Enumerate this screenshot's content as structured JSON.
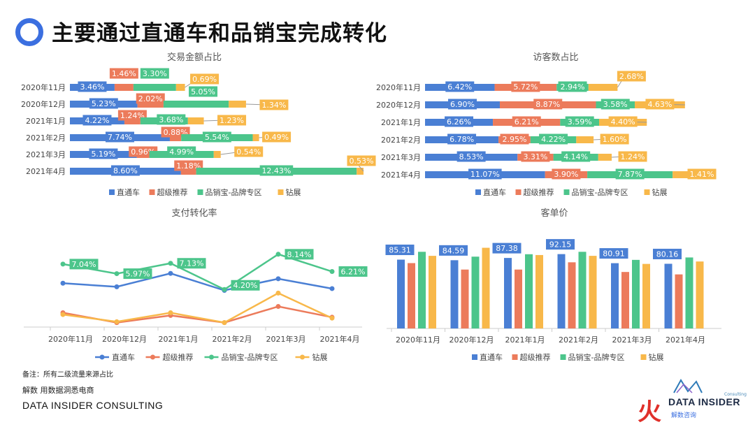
{
  "page": {
    "title": "主要通过直通车和品销宝完成转化",
    "note": "备注：所有二级流量来源占比",
    "footer_line1": "解数 用数据洞悉电商",
    "footer_line2": "DATA INSIDER CONSULTING",
    "brand_name": "DATA INSIDER",
    "brand_small": "Consulting",
    "brand_cn": "解数咨询",
    "brand_mark": "火",
    "accent_color": "#3b6fe0"
  },
  "colors": {
    "直通车": "#4a7fd4",
    "超级推荐": "#ec7b5b",
    "品销宝-品牌专区": "#4cc58b",
    "钻展": "#f8b84a"
  },
  "chart_data": [
    {
      "type": "bar",
      "orientation": "horizontal-stacked",
      "title": "交易金额占比",
      "categories": [
        "2020年11月",
        "2020年12月",
        "2021年1月",
        "2021年2月",
        "2021年3月",
        "2021年4月"
      ],
      "series": [
        {
          "name": "直通车",
          "values": [
            3.46,
            5.23,
            4.22,
            7.74,
            5.19,
            8.6
          ]
        },
        {
          "name": "超级推荐",
          "values": [
            1.46,
            2.02,
            1.24,
            0.88,
            0.96,
            1.18
          ]
        },
        {
          "name": "品销宝-品牌专区",
          "values": [
            3.3,
            5.05,
            3.68,
            5.54,
            4.99,
            12.43
          ]
        },
        {
          "name": "钻展",
          "values": [
            0.69,
            1.34,
            1.23,
            0.49,
            0.54,
            0.53
          ]
        }
      ],
      "value_suffix": "%",
      "legend": "bottom"
    },
    {
      "type": "bar",
      "orientation": "horizontal-stacked",
      "title": "访客数占比",
      "categories": [
        "2020年11月",
        "2020年12月",
        "2021年1月",
        "2021年2月",
        "2021年3月",
        "2021年4月"
      ],
      "series": [
        {
          "name": "直通车",
          "values": [
            6.42,
            6.9,
            6.26,
            6.78,
            8.53,
            11.07
          ]
        },
        {
          "name": "超级推荐",
          "values": [
            5.72,
            8.87,
            6.21,
            2.95,
            3.31,
            3.9
          ]
        },
        {
          "name": "品销宝-品牌专区",
          "values": [
            2.94,
            3.58,
            3.59,
            4.22,
            4.14,
            7.87
          ]
        },
        {
          "name": "钻展",
          "values": [
            2.68,
            4.63,
            4.4,
            1.6,
            1.24,
            1.41
          ]
        }
      ],
      "value_suffix": "%",
      "legend": "bottom"
    },
    {
      "type": "line",
      "title": "支付转化率",
      "categories": [
        "2020年11月",
        "2020年12月",
        "2021年1月",
        "2021年2月",
        "2021年3月",
        "2021年4月"
      ],
      "series": [
        {
          "name": "直通车",
          "values": [
            4.9,
            4.5,
            6.0,
            4.1,
            5.4,
            4.3
          ]
        },
        {
          "name": "超级推荐",
          "values": [
            1.6,
            0.5,
            1.3,
            0.5,
            2.3,
            1.1
          ]
        },
        {
          "name": "品销宝-品牌专区",
          "values": [
            7.04,
            5.97,
            7.13,
            4.2,
            8.14,
            6.21
          ],
          "labels": [
            "7.04%",
            "5.97%",
            "7.13%",
            "4.20%",
            "8.14%",
            "6.21%"
          ]
        },
        {
          "name": "钻展",
          "values": [
            1.4,
            0.6,
            1.6,
            0.5,
            3.8,
            1.0
          ]
        }
      ],
      "legend": "bottom"
    },
    {
      "type": "bar",
      "orientation": "vertical-grouped",
      "title": "客单价",
      "categories": [
        "2020年11月",
        "2020年12月",
        "2021年1月",
        "2021年2月",
        "2021年3月",
        "2021年4月"
      ],
      "series": [
        {
          "name": "直通车",
          "values": [
            85.31,
            84.59,
            87.38,
            92.15,
            80.91,
            80.16
          ],
          "labels": [
            "85.31",
            "84.59",
            "87.38",
            "92.15",
            "80.91",
            "80.16"
          ]
        },
        {
          "name": "超级推荐",
          "values": [
            81,
            73,
            73,
            82,
            70,
            67
          ]
        },
        {
          "name": "品销宝-品牌专区",
          "values": [
            95,
            89,
            92,
            95,
            85,
            88
          ]
        },
        {
          "name": "钻展",
          "values": [
            90,
            100,
            91,
            90,
            80,
            83
          ]
        }
      ],
      "ylim": [
        0,
        110
      ],
      "legend": "bottom"
    }
  ]
}
